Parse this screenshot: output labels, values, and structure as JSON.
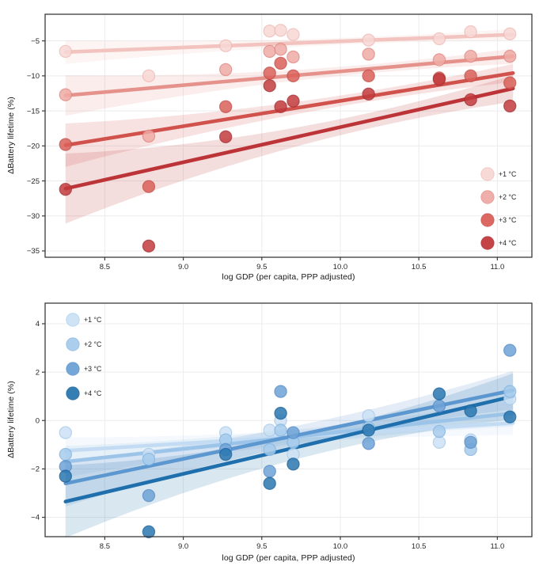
{
  "figure": {
    "background": "#ffffff",
    "frame_color": "#3a3a3a",
    "grid_color": "#ececec",
    "tick_color": "#3a3a3a",
    "text_color": "#262626",
    "band_opacity": 0.17,
    "top_xlabel": "log GDP (per capita, PPP adjusted)",
    "top_ylabel": "ΔBattery lifetime (%)",
    "bottom_xlabel": "log GDP (per capita, PPP adjusted)",
    "bottom_ylabel": "ΔBattery lifetime (%)"
  },
  "chart_data": [
    {
      "id": "top",
      "type": "scatter",
      "xlabel": "log GDP (per capita, PPP adjusted)",
      "ylabel": "ΔBattery lifetime (%)",
      "xlim": [
        8.12,
        11.22
      ],
      "ylim": [
        -35.9,
        -1.2
      ],
      "xticks": [
        {
          "v": 8.5,
          "label": "8.5"
        },
        {
          "v": 9.0,
          "label": "9.0"
        },
        {
          "v": 9.5,
          "label": "9.5"
        },
        {
          "v": 10.0,
          "label": "10.0"
        },
        {
          "v": 10.5,
          "label": "10.5"
        },
        {
          "v": 11.0,
          "label": "11.0"
        }
      ],
      "yticks": [
        {
          "v": -5,
          "label": "−5"
        },
        {
          "v": -10,
          "label": "−10"
        },
        {
          "v": -15,
          "label": "−15"
        },
        {
          "v": -20,
          "label": "−20"
        },
        {
          "v": -25,
          "label": "−25"
        },
        {
          "v": -30,
          "label": "−30"
        },
        {
          "v": -35,
          "label": "−35"
        }
      ],
      "legend_position": "lower-right",
      "x": [
        8.25,
        8.78,
        9.27,
        9.55,
        9.62,
        9.7,
        10.18,
        10.63,
        10.83,
        11.08
      ],
      "series": [
        {
          "name": "+1 °C",
          "dot_color": "#f7d7d4",
          "edge_color": "#edb5b0",
          "line_color": "#f2c3bf",
          "values": [
            -6.5,
            -10.0,
            -5.7,
            -3.6,
            -3.5,
            -4.1,
            -4.9,
            -4.7,
            -3.7,
            -4.0
          ],
          "fit": {
            "x0": 8.25,
            "y0": -6.6,
            "x1": 11.1,
            "y1": -4.1
          },
          "band": {
            "w0": 1.7,
            "wm": 0.55,
            "w1": 0.8
          }
        },
        {
          "name": "+2 °C",
          "dot_color": "#eeaaa5",
          "edge_color": "#db837e",
          "line_color": "#e6928c",
          "values": [
            -12.7,
            -18.6,
            -9.1,
            -6.5,
            -6.2,
            -7.3,
            -6.9,
            -7.7,
            -7.2,
            -7.2
          ],
          "fit": {
            "x0": 8.25,
            "y0": -12.8,
            "x1": 11.1,
            "y1": -7.2
          },
          "band": {
            "w0": 2.9,
            "wm": 0.8,
            "w1": 1.1
          }
        },
        {
          "name": "+3 °C",
          "dot_color": "#d96059",
          "edge_color": "#c04b46",
          "line_color": "#d1524c",
          "values": [
            -19.8,
            -25.8,
            -14.4,
            -9.6,
            -8.2,
            -10.0,
            -10.0,
            -10.3,
            -10.0,
            -11.0
          ],
          "fit": {
            "x0": 8.25,
            "y0": -19.9,
            "x1": 11.1,
            "y1": -9.6
          },
          "band": {
            "w0": 3.1,
            "wm": 0.9,
            "w1": 1.3
          }
        },
        {
          "name": "+4 °C",
          "dot_color": "#c23b3d",
          "edge_color": "#a12f33",
          "line_color": "#bc3438",
          "values": [
            -26.2,
            -34.3,
            -18.7,
            -11.4,
            -14.4,
            -13.6,
            -12.6,
            -10.5,
            -13.4,
            -14.3
          ],
          "fit": {
            "x0": 8.25,
            "y0": -26.1,
            "x1": 11.1,
            "y1": -11.8
          },
          "band": {
            "w0": 5.0,
            "wm": 1.4,
            "w1": 1.9
          }
        }
      ]
    },
    {
      "id": "bottom",
      "type": "scatter",
      "xlabel": "log GDP (per capita, PPP adjusted)",
      "ylabel": "ΔBattery lifetime (%)",
      "xlim": [
        8.12,
        11.22
      ],
      "ylim": [
        -4.8,
        4.85
      ],
      "xticks": [
        {
          "v": 8.5,
          "label": "8.5"
        },
        {
          "v": 9.0,
          "label": "9.0"
        },
        {
          "v": 9.5,
          "label": "9.5"
        },
        {
          "v": 10.0,
          "label": "10.0"
        },
        {
          "v": 10.5,
          "label": "10.5"
        },
        {
          "v": 11.0,
          "label": "11.0"
        }
      ],
      "yticks": [
        {
          "v": 4,
          "label": "4"
        },
        {
          "v": 2,
          "label": "2"
        },
        {
          "v": 0,
          "label": "0"
        },
        {
          "v": -2,
          "label": "−2"
        },
        {
          "v": -4,
          "label": "−4"
        }
      ],
      "legend_position": "upper-left",
      "x": [
        8.25,
        8.78,
        9.27,
        9.55,
        9.62,
        9.7,
        10.18,
        10.63,
        10.83,
        11.08
      ],
      "series": [
        {
          "name": "+1 °C",
          "dot_color": "#cbe1f5",
          "edge_color": "#9fc6e8",
          "line_color": "#c3dcf3",
          "values": [
            -0.5,
            -1.4,
            -0.5,
            -0.4,
            0.0,
            -1.4,
            0.2,
            -0.9,
            -0.8,
            0.9
          ],
          "fit": {
            "x0": 8.25,
            "y0": -1.25,
            "x1": 11.1,
            "y1": -0.1
          },
          "band": {
            "w0": 0.55,
            "wm": 0.25,
            "w1": 0.5
          }
        },
        {
          "name": "+2 °C",
          "dot_color": "#a6cbec",
          "edge_color": "#7fb0de",
          "line_color": "#9cc4e9",
          "values": [
            -1.4,
            -1.6,
            -0.8,
            -1.2,
            -0.4,
            -0.9,
            -0.3,
            -0.45,
            -1.2,
            1.2
          ],
          "fit": {
            "x0": 8.25,
            "y0": -1.7,
            "x1": 11.1,
            "y1": 0.3
          },
          "band": {
            "w0": 0.65,
            "wm": 0.3,
            "w1": 0.55
          }
        },
        {
          "name": "+3 °C",
          "dot_color": "#6da2d6",
          "edge_color": "#5288c4",
          "line_color": "#5d97d0",
          "values": [
            -1.9,
            -3.1,
            -1.2,
            -2.1,
            1.2,
            -0.5,
            -0.95,
            0.6,
            -0.9,
            2.9
          ],
          "fit": {
            "x0": 8.25,
            "y0": -2.6,
            "x1": 11.1,
            "y1": 1.25
          },
          "band": {
            "w0": 0.95,
            "wm": 0.4,
            "w1": 0.8
          }
        },
        {
          "name": "+4 °C",
          "dot_color": "#2a77b0",
          "edge_color": "#175e95",
          "line_color": "#1f6fad",
          "values": [
            -2.3,
            -4.6,
            -1.4,
            -2.6,
            0.3,
            -1.8,
            -0.4,
            1.1,
            0.4,
            0.15
          ],
          "fit": {
            "x0": 8.25,
            "y0": -3.35,
            "x1": 11.1,
            "y1": 1.0
          },
          "band": {
            "w0": 1.5,
            "wm": 0.5,
            "w1": 0.95
          }
        }
      ]
    }
  ]
}
